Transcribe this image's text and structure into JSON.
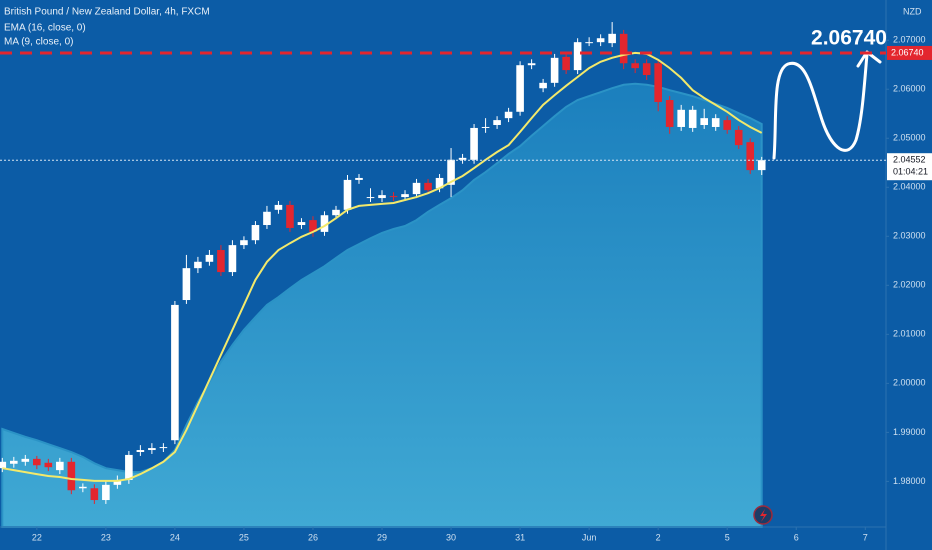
{
  "chart_data": {
    "type": "candlestick",
    "title": "British Pound / New Zealand Dollar, 4h, FXCM",
    "currency": "NZD",
    "annotation": "2.06740",
    "up_color": "#ffffff",
    "down_color": "#e3262e",
    "open": [
      1.9827,
      1.9836,
      1.984,
      1.9846,
      1.9838,
      1.9823,
      1.984,
      1.9786,
      1.9786,
      1.9762,
      1.9793,
      1.9803,
      1.986,
      1.9864,
      1.9868,
      1.9884,
      2.017,
      2.0235,
      2.0248,
      2.0272,
      2.0227,
      2.0282,
      2.0292,
      2.0323,
      2.0354,
      2.0364,
      2.0323,
      2.0333,
      2.0309,
      2.0343,
      2.0354,
      2.0415,
      2.0378,
      2.0378,
      2.0382,
      2.038,
      2.0386,
      2.0409,
      2.0398,
      2.0405,
      2.0456,
      2.0456,
      2.0521,
      2.0527,
      2.0541,
      2.0554,
      2.0649,
      2.0602,
      2.0613,
      2.0666,
      2.0639,
      2.0696,
      2.0696,
      2.0694,
      2.0713,
      2.0653,
      2.0653,
      2.0653,
      2.0578,
      2.0523,
      2.0521,
      2.0527,
      2.0523,
      2.0537,
      2.0517,
      2.0492,
      2.0435
    ],
    "high": [
      1.9848,
      1.985,
      1.9854,
      1.9852,
      1.9846,
      1.9848,
      1.9848,
      1.9796,
      1.9794,
      1.98,
      1.9812,
      1.9862,
      1.9874,
      1.9878,
      1.9878,
      2.0168,
      2.0262,
      2.0258,
      2.0272,
      2.0282,
      2.0292,
      2.03,
      2.0331,
      2.0362,
      2.0372,
      2.0372,
      2.0337,
      2.0341,
      2.0351,
      2.0362,
      2.0425,
      2.0427,
      2.0398,
      2.0394,
      2.039,
      2.0394,
      2.0417,
      2.0417,
      2.0427,
      2.048,
      2.0468,
      2.0529,
      2.0541,
      2.0545,
      2.0562,
      2.0657,
      2.0661,
      2.0621,
      2.0672,
      2.0674,
      2.0704,
      2.0706,
      2.0712,
      2.0737,
      2.0721,
      2.0661,
      2.0661,
      2.0661,
      2.0586,
      2.0568,
      2.0566,
      2.056,
      2.0549,
      2.0545,
      2.0525,
      2.05,
      2.0462
    ],
    "low": [
      1.9819,
      1.9828,
      1.9832,
      1.9825,
      1.9821,
      1.9815,
      1.9774,
      1.9778,
      1.9754,
      1.9754,
      1.9785,
      1.9795,
      1.9852,
      1.9856,
      1.986,
      1.9876,
      2.0162,
      2.0225,
      2.024,
      2.0219,
      2.0219,
      2.0274,
      2.0284,
      2.0315,
      2.0346,
      2.0309,
      2.0315,
      2.0299,
      2.0301,
      2.0335,
      2.0346,
      2.0407,
      2.037,
      2.037,
      2.0372,
      2.0372,
      2.0378,
      2.0386,
      2.039,
      2.038,
      2.0448,
      2.0448,
      2.0511,
      2.0519,
      2.0533,
      2.0546,
      2.0641,
      2.0594,
      2.0605,
      2.0631,
      2.0631,
      2.0688,
      2.0688,
      2.0686,
      2.0641,
      2.0633,
      2.0619,
      2.0555,
      2.0509,
      2.0515,
      2.0513,
      2.0519,
      2.0515,
      2.0509,
      2.0478,
      2.0427,
      2.0425
    ],
    "close": [
      1.984,
      1.9842,
      1.9846,
      1.9833,
      1.9829,
      1.984,
      1.9782,
      1.9789,
      1.9762,
      1.9793,
      1.9803,
      1.9854,
      1.9864,
      1.9868,
      1.987,
      2.016,
      2.0235,
      2.0248,
      2.0262,
      2.0227,
      2.0282,
      2.0292,
      2.0323,
      2.035,
      2.0364,
      2.0317,
      2.0329,
      2.0309,
      2.0343,
      2.0354,
      2.0415,
      2.0419,
      2.038,
      2.0384,
      2.038,
      2.0386,
      2.0409,
      2.0394,
      2.0419,
      2.0456,
      2.046,
      2.0521,
      2.0523,
      2.0537,
      2.0554,
      2.0649,
      2.0653,
      2.0613,
      2.0664,
      2.0639,
      2.0696,
      2.0696,
      2.0704,
      2.0713,
      2.0653,
      2.0643,
      2.0629,
      2.0574,
      2.0523,
      2.0558,
      2.0558,
      2.0541,
      2.0541,
      2.0517,
      2.0486,
      2.0435,
      2.04552
    ],
    "series": [
      {
        "name": "EMA (16, close, 0)",
        "color": "#f3e96b",
        "style": "line",
        "values": [
          1.9827,
          1.9823,
          1.9819,
          1.9815,
          1.9811,
          1.9809,
          1.9805,
          1.9803,
          1.9801,
          1.9801,
          1.9801,
          1.9805,
          1.9815,
          1.9827,
          1.984,
          1.986,
          1.9905,
          1.9956,
          2.0007,
          2.0058,
          2.0109,
          2.016,
          2.0211,
          2.0248,
          2.0272,
          2.0286,
          2.0299,
          2.0309,
          2.0321,
          2.0337,
          2.0354,
          2.0362,
          2.0364,
          2.0366,
          2.0368,
          2.0374,
          2.038,
          2.0388,
          2.0398,
          2.0411,
          2.0423,
          2.0439,
          2.0456,
          2.0472,
          2.0486,
          2.0513,
          2.0541,
          2.0568,
          2.0588,
          2.0607,
          2.0625,
          2.0643,
          2.0656,
          2.0664,
          2.067,
          2.0674,
          2.0672,
          2.066,
          2.0643,
          2.0623,
          2.0598,
          2.0582,
          2.0568,
          2.0554,
          2.0537,
          2.0523,
          2.0511
        ]
      },
      {
        "name": "MA (9, close, 0)",
        "color": "#2b93c6",
        "style": "area",
        "values": [
          1.9907,
          1.9899,
          1.9891,
          1.9884,
          1.9876,
          1.9868,
          1.986,
          1.985,
          1.9837,
          1.9827,
          1.9823,
          1.9819,
          1.9819,
          1.9827,
          1.984,
          1.9864,
          1.9915,
          1.9962,
          2.0003,
          2.0044,
          2.0078,
          2.0109,
          2.0135,
          2.016,
          2.0176,
          2.0194,
          2.0211,
          2.0225,
          2.0239,
          2.0256,
          2.0272,
          2.0284,
          2.0296,
          2.0307,
          2.0315,
          2.0321,
          2.0333,
          2.035,
          2.0364,
          2.0378,
          2.0394,
          2.0415,
          2.0431,
          2.0449,
          2.0468,
          2.0484,
          2.0505,
          2.0525,
          2.0545,
          2.0564,
          2.0578,
          2.0586,
          2.0594,
          2.0602,
          2.0609,
          2.0611,
          2.0609,
          2.0605,
          2.0598,
          2.0592,
          2.0586,
          2.0578,
          2.057,
          2.0562,
          2.0551,
          2.0541,
          2.0529
        ]
      }
    ],
    "price_line": {
      "value": 2.0674,
      "label": "2.06740",
      "color": "#e3262e"
    },
    "last_price": {
      "value": 2.04552,
      "countdown": "01:04:21"
    },
    "xlim": [
      -0.2,
      76.8
    ],
    "xticks": [
      {
        "value": 3,
        "label": "22"
      },
      {
        "value": 9,
        "label": "23"
      },
      {
        "value": 15,
        "label": "24"
      },
      {
        "value": 21,
        "label": "25"
      },
      {
        "value": 27,
        "label": "26"
      },
      {
        "value": 33,
        "label": "29"
      },
      {
        "value": 39,
        "label": "30"
      },
      {
        "value": 45,
        "label": "31"
      },
      {
        "value": 51,
        "label": "Jun"
      },
      {
        "value": 57,
        "label": "2"
      },
      {
        "value": 63,
        "label": "5"
      },
      {
        "value": 69,
        "label": "6"
      },
      {
        "value": 75,
        "label": "7"
      }
    ],
    "ylim": [
      1.9707,
      2.0782
    ],
    "yticks": [
      {
        "value": 1.98,
        "label": "1.98000"
      },
      {
        "value": 1.99,
        "label": "1.99000"
      },
      {
        "value": 2.0,
        "label": "2.00000"
      },
      {
        "value": 2.01,
        "label": "2.01000"
      },
      {
        "value": 2.02,
        "label": "2.02000"
      },
      {
        "value": 2.03,
        "label": "2.03000"
      },
      {
        "value": 2.04,
        "label": "2.04000"
      },
      {
        "value": 2.05,
        "label": "2.05000"
      },
      {
        "value": 2.06,
        "label": "2.06000"
      },
      {
        "value": 2.07,
        "label": "2.07000"
      }
    ]
  }
}
